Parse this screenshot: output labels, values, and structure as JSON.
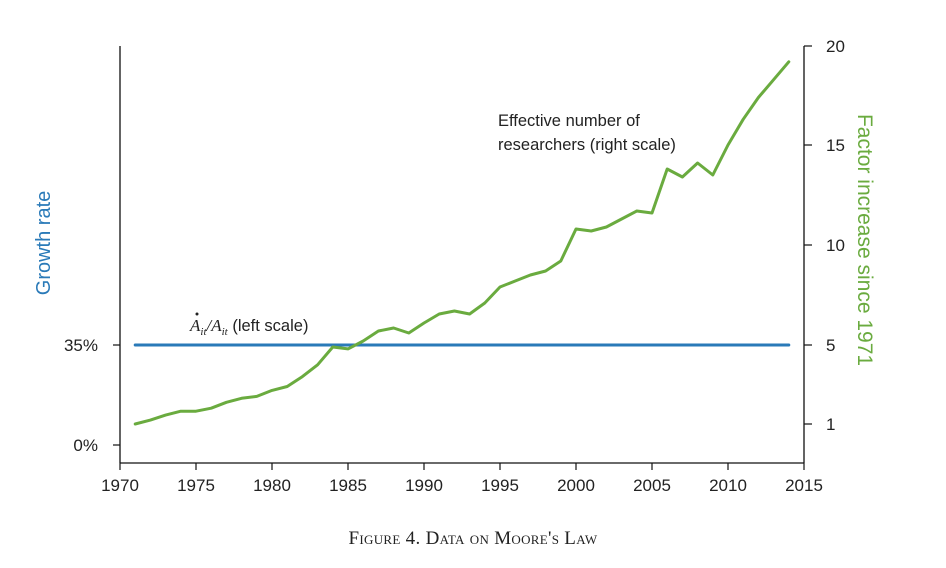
{
  "chart_data": {
    "type": "line",
    "caption": "Figure 4. Data on Moore's Law",
    "x_axis": {
      "range": [
        1970,
        2015
      ],
      "ticks": [
        1970,
        1975,
        1980,
        1985,
        1990,
        1995,
        2000,
        2005,
        2010,
        2015
      ]
    },
    "y_left": {
      "label": "Growth rate",
      "color": "#2a7ab8",
      "ticks": [
        {
          "value": 0,
          "label": "0%"
        },
        {
          "value": 35,
          "label": "35%"
        }
      ]
    },
    "y_right": {
      "label": "Factor increase since 1971",
      "color": "#6aab3f",
      "range": [
        0,
        20
      ],
      "ticks": [
        {
          "value": 1,
          "label": "1"
        },
        {
          "value": 5,
          "label": "5"
        },
        {
          "value": 10,
          "label": "10"
        },
        {
          "value": 15,
          "label": "15"
        },
        {
          "value": 20,
          "label": "20"
        }
      ]
    },
    "series": [
      {
        "id": "growth",
        "axis": "left",
        "color": "#2a7ab8",
        "label_parts": {
          "num": "A",
          "num_sub": "it",
          "slash": "/",
          "den": "A",
          "den_sub": "it",
          "suffix": " (left scale)"
        },
        "x": [
          1971,
          2014
        ],
        "y": [
          35,
          35
        ]
      },
      {
        "id": "researchers",
        "axis": "right",
        "color": "#6aab3f",
        "label_lines": [
          "Effective number of",
          "researchers (right scale)"
        ],
        "x": [
          1971,
          1972,
          1973,
          1974,
          1975,
          1976,
          1977,
          1978,
          1979,
          1980,
          1981,
          1982,
          1983,
          1984,
          1985,
          1986,
          1987,
          1988,
          1989,
          1990,
          1991,
          1992,
          1993,
          1994,
          1995,
          1996,
          1997,
          1998,
          1999,
          2000,
          2001,
          2002,
          2003,
          2004,
          2005,
          2006,
          2007,
          2008,
          2009,
          2010,
          2011,
          2012,
          2013,
          2014
        ],
        "y": [
          1.0,
          1.2,
          1.45,
          1.65,
          1.65,
          1.8,
          2.1,
          2.3,
          2.4,
          2.7,
          2.9,
          3.4,
          4.0,
          4.9,
          4.8,
          5.2,
          5.7,
          5.85,
          5.6,
          6.1,
          6.55,
          6.7,
          6.55,
          7.1,
          7.9,
          8.2,
          8.5,
          8.7,
          9.2,
          10.8,
          10.7,
          10.9,
          11.3,
          11.7,
          11.6,
          13.8,
          13.4,
          14.1,
          13.5,
          15.0,
          16.3,
          17.4,
          18.3,
          19.2
        ]
      }
    ]
  }
}
